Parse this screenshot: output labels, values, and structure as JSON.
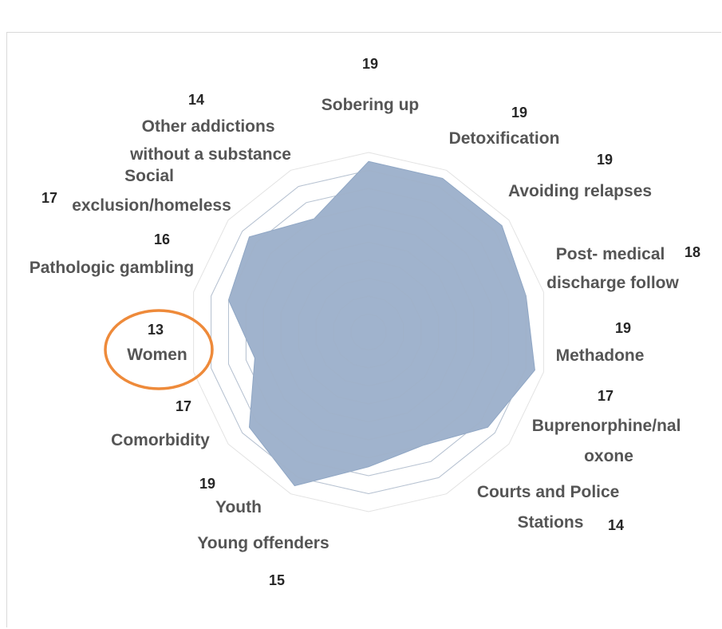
{
  "chart_data": {
    "type": "radar",
    "title": "",
    "categories": [
      "Sobering up",
      "Detoxification",
      "Avoiding relapses",
      "Post- medical discharge follow",
      "Methadone",
      "Buprenorphine/naloxone",
      "Courts and Police Stations",
      "Young offenders",
      "Youth",
      "Comorbidity",
      "Women",
      "Pathologic gambling",
      "Social exclusion/homeless",
      "Other addictions without a substance"
    ],
    "series": [
      {
        "values": [
          19,
          19,
          19,
          18,
          19,
          17,
          14,
          15,
          19,
          17,
          13,
          16,
          17,
          14
        ],
        "fill_color": "#8fa6c4"
      }
    ],
    "rlim": [
      0,
      20
    ],
    "grid": true,
    "highlight": {
      "category": "Women",
      "color": "#ee8a3a"
    }
  }
}
